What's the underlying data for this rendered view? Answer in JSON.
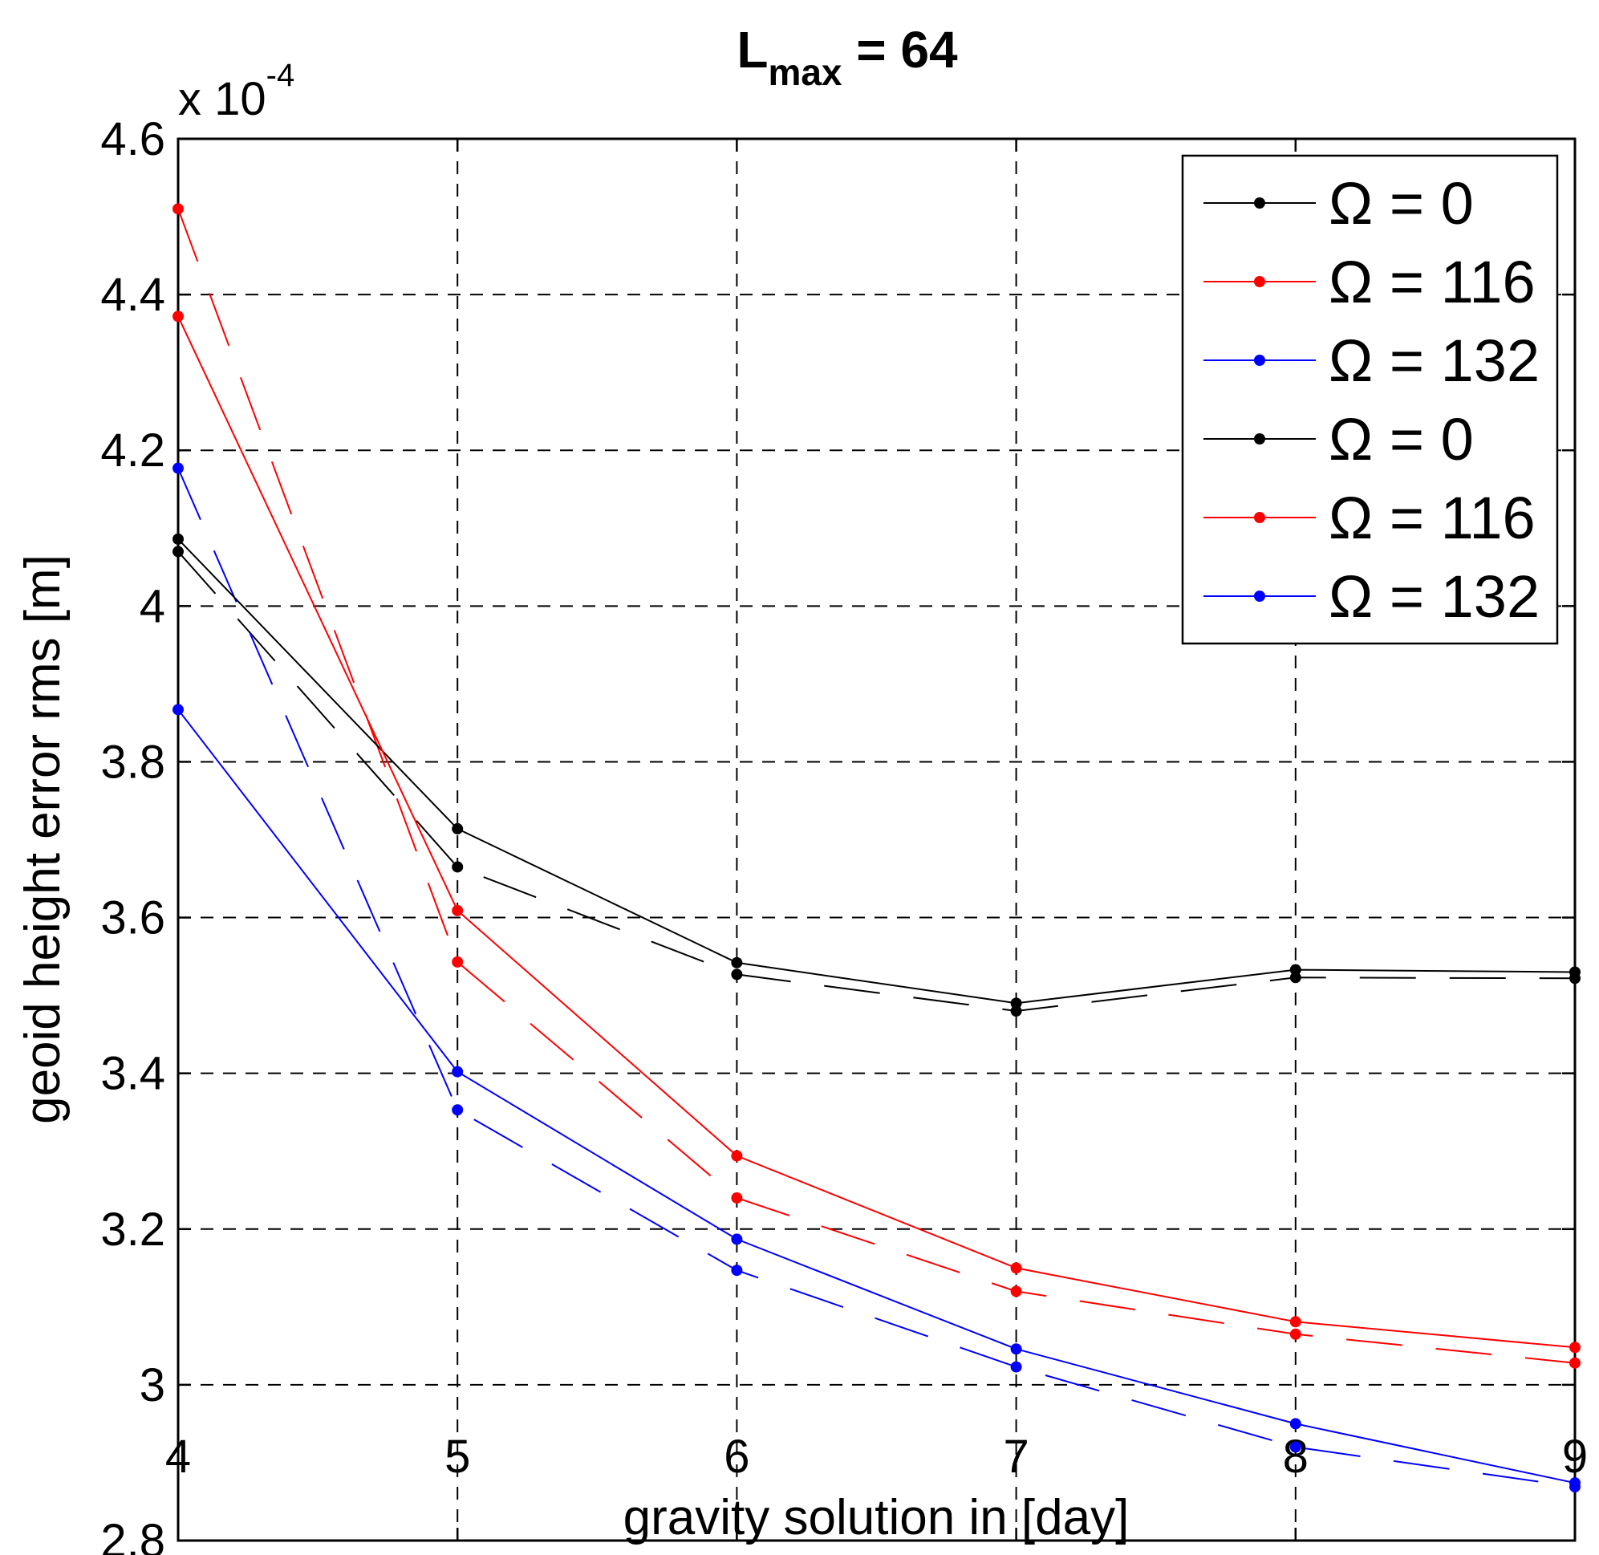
{
  "chart_data": {
    "type": "line",
    "title": {
      "main": "L",
      "subscript": "max",
      "suffix": " = 64"
    },
    "xlabel": "gravity solution in [day]",
    "ylabel": "geoid height error rms [m]",
    "y_multiplier": {
      "base": "x 10",
      "exponent": "-4"
    },
    "xlim": [
      4,
      9
    ],
    "ylim": [
      2.8,
      4.6
    ],
    "x_ticks": [
      "4",
      "5",
      "6",
      "7",
      "8",
      "9"
    ],
    "y_ticks": [
      "2.8",
      "3",
      "3.2",
      "3.4",
      "3.6",
      "3.8",
      "4",
      "4.2",
      "4.4",
      "4.6"
    ],
    "grid": true,
    "legend_position": "top-right",
    "x": [
      4,
      5,
      6,
      7,
      8,
      9
    ],
    "series": [
      {
        "name": "Ω = 0",
        "color": "#000000",
        "style": "dashed",
        "values": [
          4.07,
          3.665,
          3.527,
          3.48,
          3.523,
          3.522
        ]
      },
      {
        "name": "Ω = 116",
        "color": "#ff0000",
        "style": "dashed",
        "values": [
          4.51,
          3.543,
          3.24,
          3.12,
          3.065,
          3.028
        ]
      },
      {
        "name": "Ω = 132",
        "color": "#0000ff",
        "style": "dashed",
        "values": [
          4.177,
          3.353,
          3.147,
          3.023,
          2.92,
          2.869
        ]
      },
      {
        "name": "Ω = 0",
        "color": "#000000",
        "style": "solid",
        "values": [
          4.086,
          3.714,
          3.542,
          3.49,
          3.533,
          3.53
        ]
      },
      {
        "name": "Ω = 116",
        "color": "#ff0000",
        "style": "solid",
        "values": [
          4.372,
          3.609,
          3.294,
          3.15,
          3.081,
          3.048
        ]
      },
      {
        "name": "Ω = 132",
        "color": "#0000ff",
        "style": "solid",
        "values": [
          3.867,
          3.402,
          3.187,
          3.046,
          2.95,
          2.874
        ]
      }
    ]
  }
}
